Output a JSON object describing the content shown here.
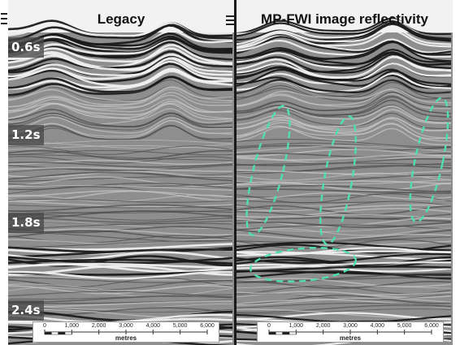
{
  "panels": [
    {
      "title": "Legacy",
      "time_labels": [
        "0.6s",
        "1.2s",
        "1.8s",
        "2.4s"
      ],
      "scale_ticks": [
        "0",
        "1,000",
        "2,000",
        "3,000",
        "4,000",
        "5,000",
        "6,000"
      ],
      "scale_unit": "metres"
    },
    {
      "title": "MP-FWI image reflectivity",
      "scale_ticks": [
        "0",
        "1,000",
        "2,000",
        "3,000",
        "4,000",
        "5,000",
        "6,000"
      ],
      "scale_unit": "metres"
    }
  ],
  "colors": {
    "highlight_dash": "#4fe0b0",
    "background_gray": "#8c8c8c"
  }
}
